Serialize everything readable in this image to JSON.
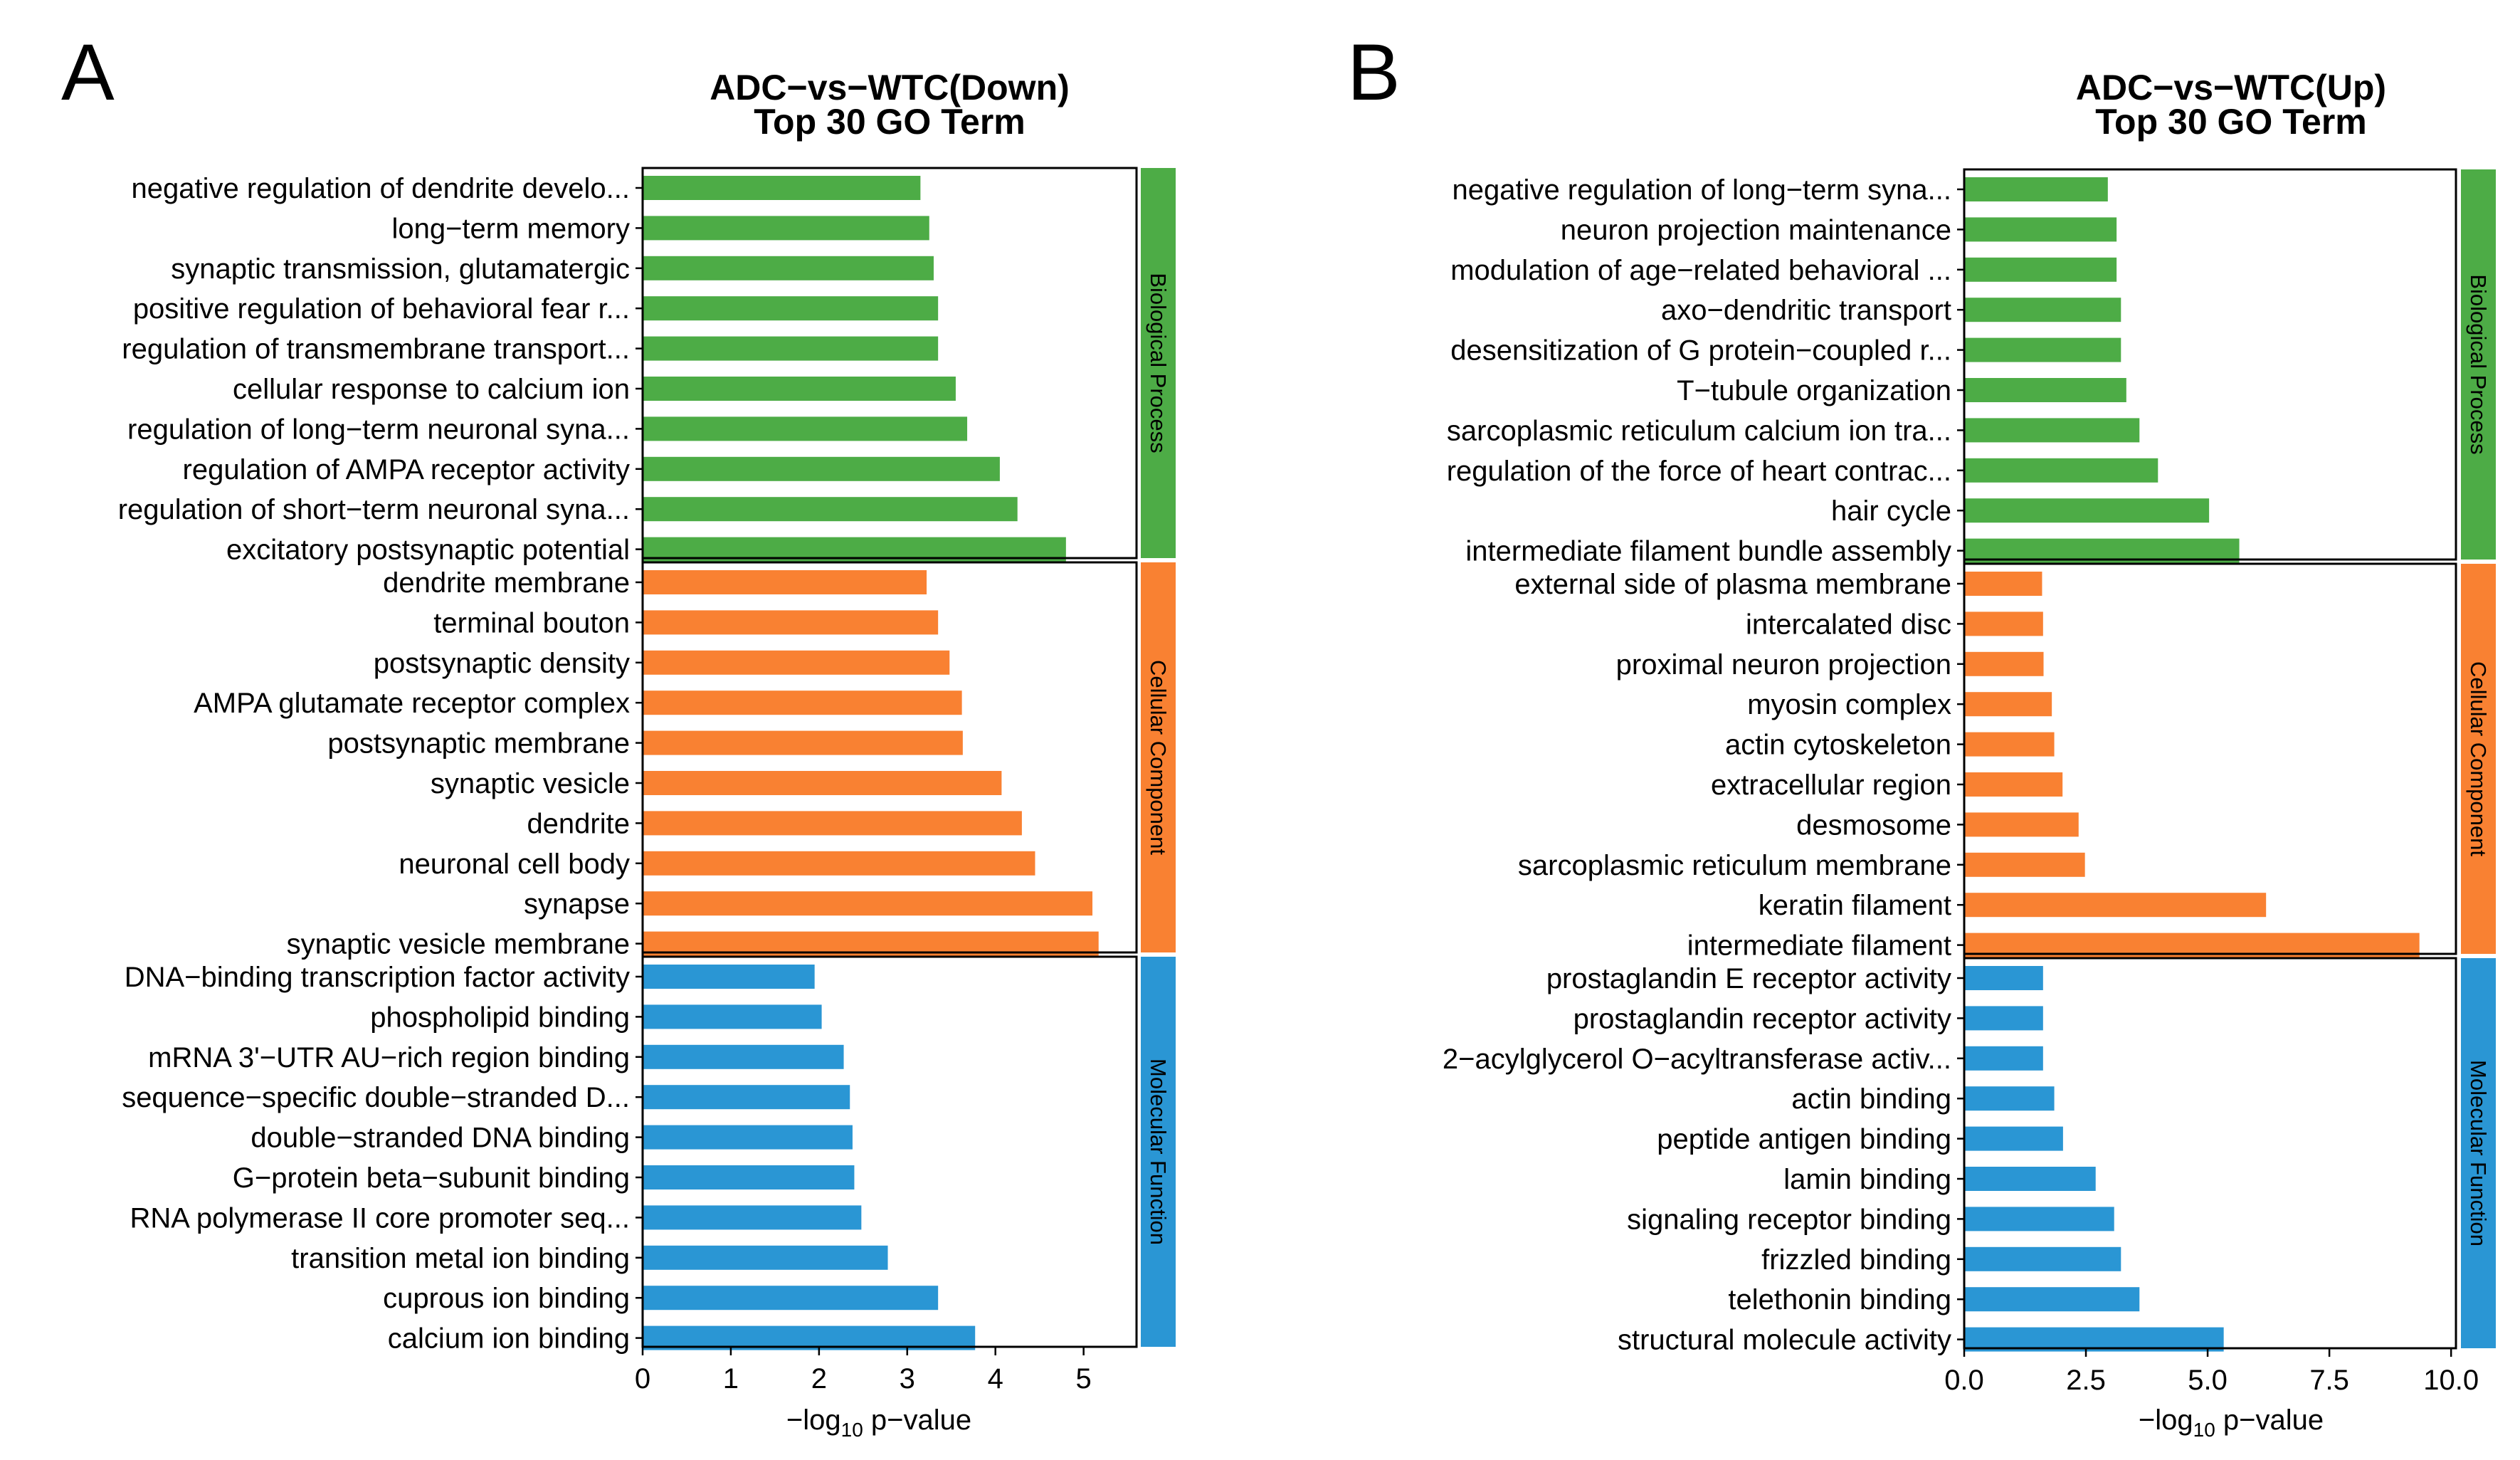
{
  "chart_data": [
    {
      "type": "bar",
      "orientation": "horizontal",
      "panel_label": "A",
      "title": [
        "ADC−vs−WTC(Down)",
        "Top 30 GO Term"
      ],
      "xlabel": {
        "prefix": "−log",
        "sub": "10",
        "suffix": " p−value"
      },
      "xlim": [
        0,
        5.6
      ],
      "xticks": [
        0,
        1,
        2,
        3,
        4,
        5
      ],
      "xtick_labels": [
        "0",
        "1",
        "2",
        "3",
        "4",
        "5"
      ],
      "groups": [
        {
          "name": "Biological Process",
          "color": "#4DAC46",
          "terms": [
            {
              "label": "negative regulation of dendrite develo...",
              "value": 3.15
            },
            {
              "label": "long−term memory",
              "value": 3.25
            },
            {
              "label": "synaptic transmission, glutamatergic",
              "value": 3.3
            },
            {
              "label": "positive regulation of behavioral fear r...",
              "value": 3.35
            },
            {
              "label": "regulation of transmembrane transport...",
              "value": 3.35
            },
            {
              "label": "cellular response to calcium ion",
              "value": 3.55
            },
            {
              "label": "regulation of long−term neuronal syna...",
              "value": 3.68
            },
            {
              "label": "regulation of AMPA receptor activity",
              "value": 4.05
            },
            {
              "label": "regulation of short−term neuronal syna...",
              "value": 4.25
            },
            {
              "label": "excitatory postsynaptic potential",
              "value": 4.8
            }
          ]
        },
        {
          "name": "Cellular Component",
          "color": "#F98132",
          "terms": [
            {
              "label": "dendrite membrane",
              "value": 3.22
            },
            {
              "label": "terminal bouton",
              "value": 3.35
            },
            {
              "label": "postsynaptic density",
              "value": 3.48
            },
            {
              "label": "AMPA glutamate receptor complex",
              "value": 3.62
            },
            {
              "label": "postsynaptic membrane",
              "value": 3.63
            },
            {
              "label": "synaptic vesicle",
              "value": 4.07
            },
            {
              "label": "dendrite",
              "value": 4.3
            },
            {
              "label": "neuronal cell body",
              "value": 4.45
            },
            {
              "label": "synapse",
              "value": 5.1
            },
            {
              "label": "synaptic vesicle membrane",
              "value": 5.17
            }
          ]
        },
        {
          "name": "Molecular Function",
          "color": "#2A96D4",
          "terms": [
            {
              "label": "DNA−binding transcription factor activity",
              "value": 1.95
            },
            {
              "label": "phospholipid binding",
              "value": 2.03
            },
            {
              "label": "mRNA 3'−UTR AU−rich region binding",
              "value": 2.28
            },
            {
              "label": "sequence−specific double−stranded D...",
              "value": 2.35
            },
            {
              "label": "double−stranded DNA binding",
              "value": 2.38
            },
            {
              "label": "G−protein beta−subunit binding",
              "value": 2.4
            },
            {
              "label": "RNA polymerase II core promoter seq...",
              "value": 2.48
            },
            {
              "label": "transition metal ion binding",
              "value": 2.78
            },
            {
              "label": "cuprous ion binding",
              "value": 3.35
            },
            {
              "label": "calcium ion binding",
              "value": 3.77
            }
          ]
        }
      ]
    },
    {
      "type": "bar",
      "orientation": "horizontal",
      "panel_label": "B",
      "title": [
        "ADC−vs−WTC(Up)",
        "Top 30 GO Term"
      ],
      "xlabel": {
        "prefix": "−log",
        "sub": "10",
        "suffix": " p−value"
      },
      "xlim": [
        0,
        10.1
      ],
      "xticks": [
        0,
        2.5,
        5,
        7.5,
        10
      ],
      "xtick_labels": [
        "0.0",
        "2.5",
        "5.0",
        "7.5",
        "10.0"
      ],
      "groups": [
        {
          "name": "Biological Process",
          "color": "#4DAC46",
          "terms": [
            {
              "label": "negative regulation of long−term syna...",
              "value": 2.95
            },
            {
              "label": "neuron projection maintenance",
              "value": 3.13
            },
            {
              "label": "modulation of age−related behavioral ...",
              "value": 3.13
            },
            {
              "label": "axo−dendritic transport",
              "value": 3.22
            },
            {
              "label": "desensitization of G protein−coupled r...",
              "value": 3.22
            },
            {
              "label": "T−tubule organization",
              "value": 3.33
            },
            {
              "label": "sarcoplasmic reticulum calcium ion tra...",
              "value": 3.6
            },
            {
              "label": "regulation of the force of heart contrac...",
              "value": 3.98
            },
            {
              "label": "hair cycle",
              "value": 5.03
            },
            {
              "label": "intermediate filament bundle assembly",
              "value": 5.65
            }
          ]
        },
        {
          "name": "Cellular Component",
          "color": "#F98132",
          "terms": [
            {
              "label": "external side of plasma membrane",
              "value": 1.6
            },
            {
              "label": "intercalated disc",
              "value": 1.62
            },
            {
              "label": "proximal neuron projection",
              "value": 1.63
            },
            {
              "label": "myosin complex",
              "value": 1.8
            },
            {
              "label": "actin cytoskeleton",
              "value": 1.85
            },
            {
              "label": "extracellular region",
              "value": 2.02
            },
            {
              "label": "desmosome",
              "value": 2.35
            },
            {
              "label": "sarcoplasmic reticulum membrane",
              "value": 2.48
            },
            {
              "label": "keratin filament",
              "value": 6.2
            },
            {
              "label": "intermediate filament",
              "value": 9.35
            }
          ]
        },
        {
          "name": "Molecular Function",
          "color": "#2A96D4",
          "terms": [
            {
              "label": "prostaglandin E receptor activity",
              "value": 1.62
            },
            {
              "label": "prostaglandin receptor activity",
              "value": 1.62
            },
            {
              "label": "2−acylglycerol O−acyltransferase activ...",
              "value": 1.62
            },
            {
              "label": "actin binding",
              "value": 1.85
            },
            {
              "label": "peptide antigen binding",
              "value": 2.03
            },
            {
              "label": "lamin binding",
              "value": 2.7
            },
            {
              "label": "signaling receptor binding",
              "value": 3.08
            },
            {
              "label": "frizzled binding",
              "value": 3.22
            },
            {
              "label": "telethonin binding",
              "value": 3.6
            },
            {
              "label": "structural molecule activity",
              "value": 5.33
            }
          ]
        }
      ]
    }
  ]
}
